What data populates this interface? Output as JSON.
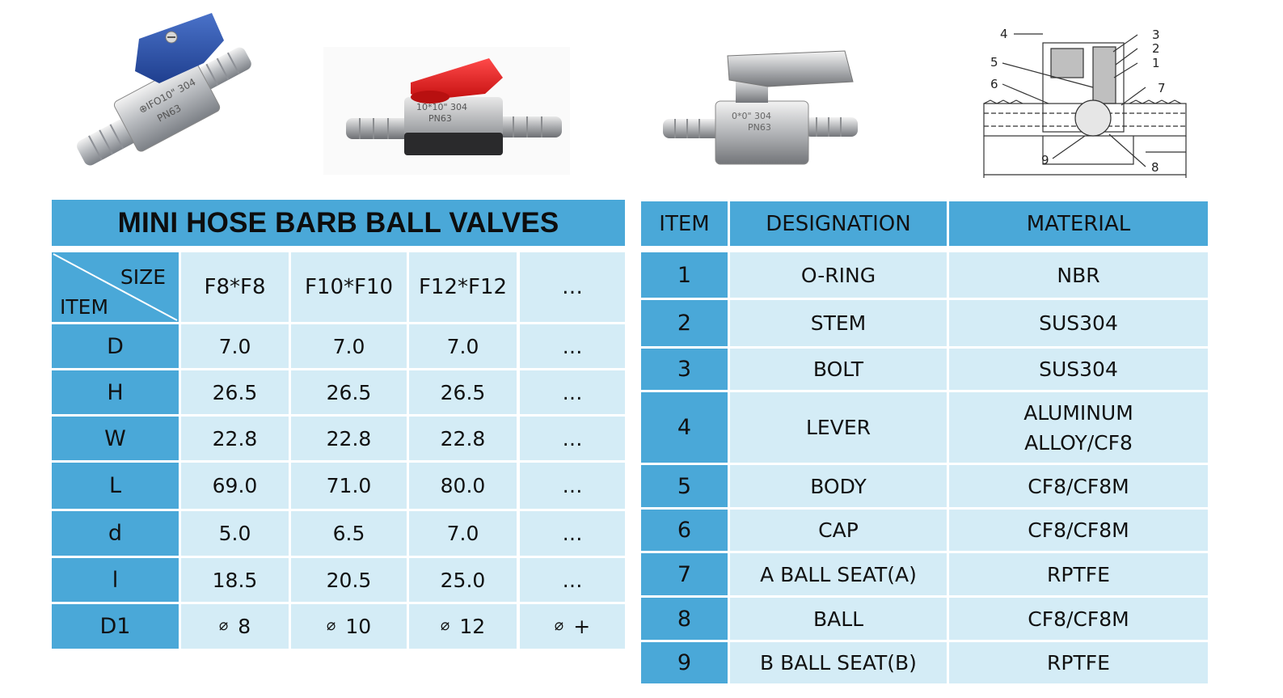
{
  "photos": {
    "photo1_caption_icon": "blue-lever-valve-icon",
    "photo2_caption_icon": "red-lever-valve-icon",
    "photo3_caption_icon": "steel-lever-valve-icon",
    "diagram_icon": "valve-cross-section-icon",
    "valve_marking_a": "⊕IFO10\" 304",
    "valve_marking_b": "PN63",
    "valve_marking_c": "0*0\" 304",
    "diagram_callouts": [
      "4",
      "3",
      "2",
      "5",
      "1",
      "6",
      "7",
      "9",
      "8"
    ]
  },
  "size_table": {
    "title": "MINI HOSE BARB BALL VALVES",
    "corner_size": "SIZE",
    "corner_item": "ITEM",
    "columns": [
      "F8*F8",
      "F10*F10",
      "F12*F12",
      "…"
    ],
    "rows": [
      {
        "item": "D",
        "values": [
          "7.0",
          "7.0",
          "7.0",
          "…"
        ]
      },
      {
        "item": "H",
        "values": [
          "26.5",
          "26.5",
          "26.5",
          "…"
        ]
      },
      {
        "item": "W",
        "values": [
          "22.8",
          "22.8",
          "22.8",
          "…"
        ]
      },
      {
        "item": "L",
        "values": [
          "69.0",
          "71.0",
          "80.0",
          "…"
        ]
      },
      {
        "item": "d",
        "values": [
          "5.0",
          "6.5",
          "7.0",
          "…"
        ]
      },
      {
        "item": "l",
        "values": [
          "18.5",
          "20.5",
          "25.0",
          "…"
        ]
      }
    ],
    "d1_row": {
      "item": "D1",
      "symbol": "⌀",
      "values": [
        "8",
        "10",
        "12",
        "+"
      ]
    }
  },
  "material_table": {
    "headers": [
      "ITEM",
      "DESIGNATION",
      "MATERIAL"
    ],
    "rows": [
      {
        "item": "1",
        "designation": "O-RING",
        "material": "NBR"
      },
      {
        "item": "2",
        "designation": "STEM",
        "material": "SUS304"
      },
      {
        "item": "3",
        "designation": "BOLT",
        "material": "SUS304"
      },
      {
        "item": "4",
        "designation": "LEVER",
        "material_line1": "ALUMINUM",
        "material_line2": "ALLOY/CF8"
      },
      {
        "item": "5",
        "designation": "BODY",
        "material": "CF8/CF8M"
      },
      {
        "item": "6",
        "designation": "CAP",
        "material": "CF8/CF8M"
      },
      {
        "item": "7",
        "designation": "A BALL SEAT(A)",
        "material": "RPTFE"
      },
      {
        "item": "8",
        "designation": "BALL",
        "material": "CF8/CF8M"
      },
      {
        "item": "9",
        "designation": "B BALL SEAT(B)",
        "material": "RPTFE"
      }
    ]
  }
}
